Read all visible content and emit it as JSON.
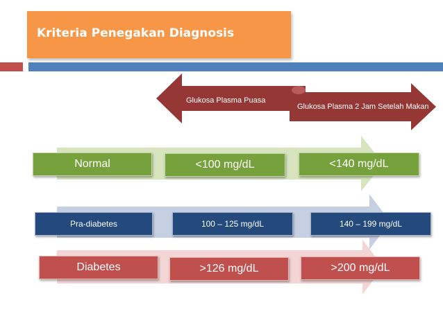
{
  "header": {
    "title": "Kriteria Penegakan Diagnosis"
  },
  "arrows": {
    "fasting": "Glukosa Plasma Puasa",
    "two_hour": "Glukosa Plasma 2 Jam Setelah Makan"
  },
  "rows": [
    {
      "category": "Normal",
      "fasting": "<100 mg/dL",
      "two_hour": "<140 mg/dL",
      "color": "#77a13c"
    },
    {
      "category": "Pra-diabetes",
      "fasting": "100 – 125 mg/dL",
      "two_hour": "140 – 199 mg/dL",
      "color": "#24497c"
    },
    {
      "category": "Diabetes",
      "fasting": ">126 mg/dL",
      "two_hour": ">200 mg/dL",
      "color": "#c0504d"
    }
  ],
  "colors": {
    "title_bg": "#f79646",
    "rule_red": "#c0504d",
    "rule_blue": "#4f81bd",
    "arrow_dark_red": "#953735",
    "band_green": "#d7e4bd",
    "band_blue": "#c6d0e3",
    "band_red": "#f2d5d4"
  }
}
